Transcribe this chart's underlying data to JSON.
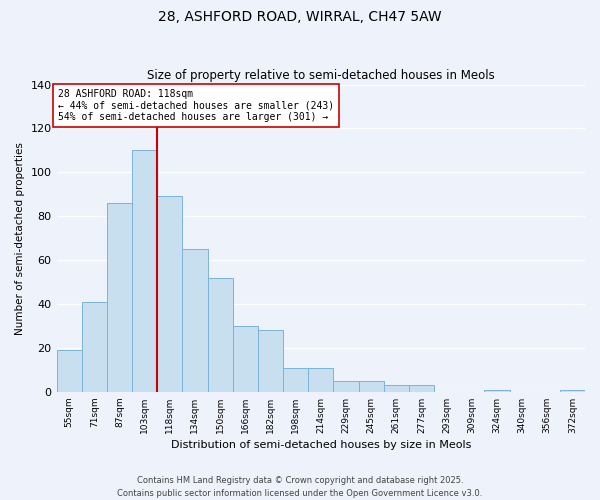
{
  "title": "28, ASHFORD ROAD, WIRRAL, CH47 5AW",
  "subtitle": "Size of property relative to semi-detached houses in Meols",
  "xlabel": "Distribution of semi-detached houses by size in Meols",
  "ylabel": "Number of semi-detached properties",
  "bar_color": "#c8dff0",
  "bar_edge_color": "#7ab4d8",
  "background_color": "#eef2fb",
  "grid_color": "#ffffff",
  "categories": [
    "55sqm",
    "71sqm",
    "87sqm",
    "103sqm",
    "118sqm",
    "134sqm",
    "150sqm",
    "166sqm",
    "182sqm",
    "198sqm",
    "214sqm",
    "229sqm",
    "245sqm",
    "261sqm",
    "277sqm",
    "293sqm",
    "309sqm",
    "324sqm",
    "340sqm",
    "356sqm",
    "372sqm"
  ],
  "values": [
    19,
    41,
    86,
    110,
    89,
    65,
    52,
    30,
    28,
    11,
    11,
    5,
    5,
    3,
    3,
    0,
    0,
    1,
    0,
    0,
    1
  ],
  "ylim": [
    0,
    140
  ],
  "yticks": [
    0,
    20,
    40,
    60,
    80,
    100,
    120,
    140
  ],
  "property_line_bar_index": 3,
  "property_line_label": "28 ASHFORD ROAD: 118sqm",
  "annotation_smaller": "← 44% of semi-detached houses are smaller (243)",
  "annotation_larger": "54% of semi-detached houses are larger (301) →",
  "annotation_box_color": "#ffffff",
  "annotation_box_edge": "#cc0000",
  "property_line_color": "#cc0000",
  "footer_line1": "Contains HM Land Registry data © Crown copyright and database right 2025.",
  "footer_line2": "Contains public sector information licensed under the Open Government Licence v3.0."
}
